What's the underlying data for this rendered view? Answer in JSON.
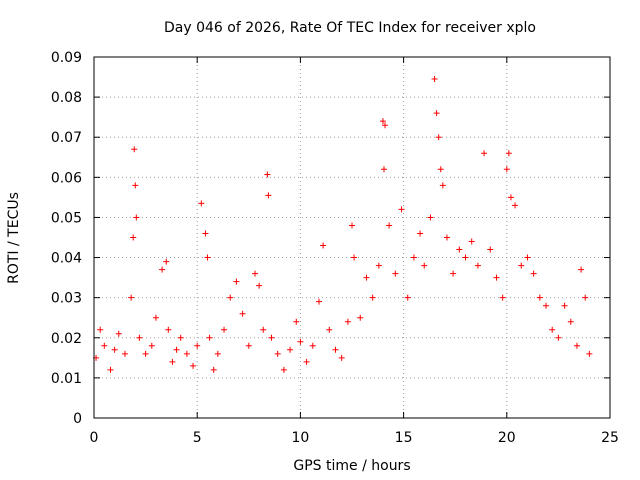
{
  "chart_data": {
    "type": "scatter",
    "title": "Day 046 of 2026, Rate Of TEC Index for receiver xplo",
    "xlabel": "GPS time / hours",
    "ylabel": "ROTI / TECUs",
    "xlim": [
      0,
      25
    ],
    "ylim": [
      0,
      0.09
    ],
    "xticks": [
      0,
      5,
      10,
      15,
      20,
      25
    ],
    "xtick_labels": [
      "0",
      "5",
      "10",
      "15",
      "20",
      "25"
    ],
    "yticks": [
      0,
      0.01,
      0.02,
      0.03,
      0.04,
      0.05,
      0.06,
      0.07,
      0.08,
      0.09
    ],
    "ytick_labels": [
      "0",
      "0.01",
      "0.02",
      "0.03",
      "0.04",
      "0.05",
      "0.06",
      "0.07",
      "0.08",
      "0.09"
    ],
    "grid": true,
    "marker": "+",
    "series": [
      {
        "name": "ROTI",
        "color": "#ff0000",
        "x": [
          0.1,
          0.3,
          0.5,
          0.8,
          1.0,
          1.2,
          1.5,
          1.8,
          1.9,
          1.95,
          2.0,
          2.05,
          2.2,
          2.5,
          2.8,
          3.0,
          3.3,
          3.5,
          3.6,
          3.8,
          4.0,
          4.2,
          4.5,
          4.8,
          5.0,
          5.2,
          5.4,
          5.5,
          5.6,
          5.8,
          6.0,
          6.3,
          6.6,
          6.9,
          7.2,
          7.5,
          7.8,
          8.0,
          8.2,
          8.4,
          8.45,
          8.6,
          8.9,
          9.2,
          9.5,
          9.8,
          10.0,
          10.3,
          10.6,
          10.9,
          11.1,
          11.4,
          11.7,
          12.0,
          12.3,
          12.5,
          12.6,
          12.9,
          13.2,
          13.5,
          13.8,
          14.0,
          14.05,
          14.1,
          14.3,
          14.6,
          14.9,
          15.2,
          15.5,
          15.8,
          16.0,
          16.3,
          16.5,
          16.6,
          16.7,
          16.8,
          16.9,
          17.1,
          17.4,
          17.7,
          18.0,
          18.3,
          18.6,
          18.9,
          19.2,
          19.5,
          19.8,
          20.0,
          20.1,
          20.2,
          20.4,
          20.7,
          21.0,
          21.3,
          21.6,
          21.9,
          22.2,
          22.5,
          22.8,
          23.1,
          23.4,
          23.6,
          23.8,
          24.0
        ],
        "y": [
          0.015,
          0.022,
          0.018,
          0.012,
          0.017,
          0.021,
          0.016,
          0.03,
          0.045,
          0.067,
          0.058,
          0.05,
          0.02,
          0.016,
          0.018,
          0.025,
          0.037,
          0.039,
          0.022,
          0.014,
          0.017,
          0.02,
          0.016,
          0.013,
          0.018,
          0.0535,
          0.046,
          0.04,
          0.02,
          0.012,
          0.016,
          0.022,
          0.03,
          0.034,
          0.026,
          0.018,
          0.036,
          0.033,
          0.022,
          0.0607,
          0.0555,
          0.02,
          0.016,
          0.012,
          0.017,
          0.024,
          0.019,
          0.014,
          0.018,
          0.029,
          0.043,
          0.022,
          0.017,
          0.015,
          0.024,
          0.048,
          0.04,
          0.025,
          0.035,
          0.03,
          0.038,
          0.074,
          0.062,
          0.073,
          0.048,
          0.036,
          0.052,
          0.03,
          0.04,
          0.046,
          0.038,
          0.05,
          0.0845,
          0.076,
          0.07,
          0.062,
          0.058,
          0.045,
          0.036,
          0.042,
          0.04,
          0.044,
          0.038,
          0.066,
          0.042,
          0.035,
          0.03,
          0.062,
          0.066,
          0.055,
          0.053,
          0.038,
          0.04,
          0.036,
          0.03,
          0.028,
          0.022,
          0.02,
          0.028,
          0.024,
          0.018,
          0.037,
          0.03,
          0.016
        ]
      }
    ]
  }
}
